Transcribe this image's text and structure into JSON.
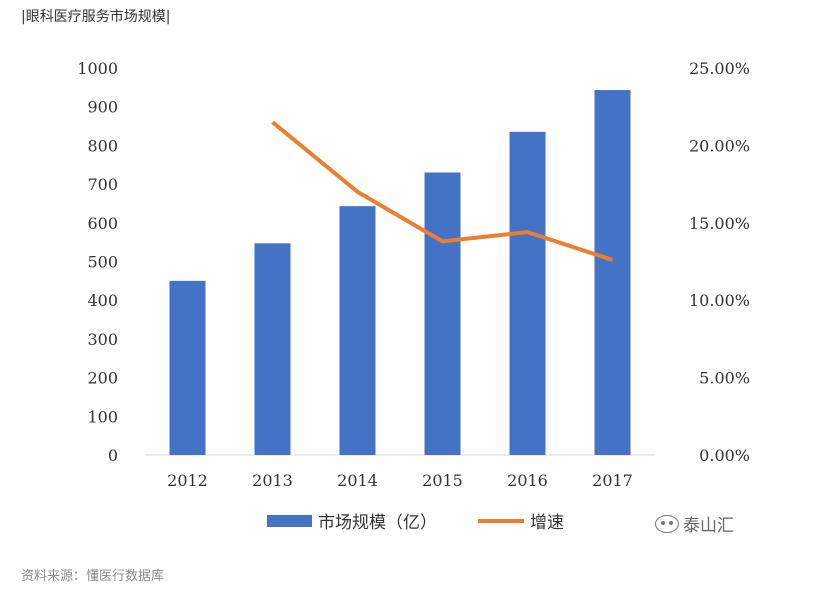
{
  "title": "|眼科医疗服务市场规模|",
  "source": "资料来源：懂医行数据库",
  "watermark": "泰山汇",
  "chart_data": {
    "type": "bar",
    "categories": [
      "2012",
      "2013",
      "2014",
      "2015",
      "2016",
      "2017"
    ],
    "series": [
      {
        "name": "市场规模（亿）",
        "kind": "bar",
        "axis": "left",
        "color": "#4472C4",
        "values": [
          450,
          547,
          643,
          730,
          835,
          943
        ]
      },
      {
        "name": "增速",
        "kind": "line",
        "axis": "right",
        "color": "#ED7D31",
        "values": [
          null,
          21.5,
          17.0,
          13.8,
          14.4,
          12.6
        ]
      }
    ],
    "left_axis": {
      "min": 0,
      "max": 1000,
      "ticks": [
        "0",
        "100",
        "200",
        "300",
        "400",
        "500",
        "600",
        "700",
        "800",
        "900",
        "1000"
      ]
    },
    "right_axis": {
      "min": 0,
      "max": 25,
      "ticks": [
        "0.00%",
        "5.00%",
        "10.00%",
        "15.00%",
        "20.00%",
        "25.00%"
      ]
    },
    "legend_position": "bottom"
  }
}
